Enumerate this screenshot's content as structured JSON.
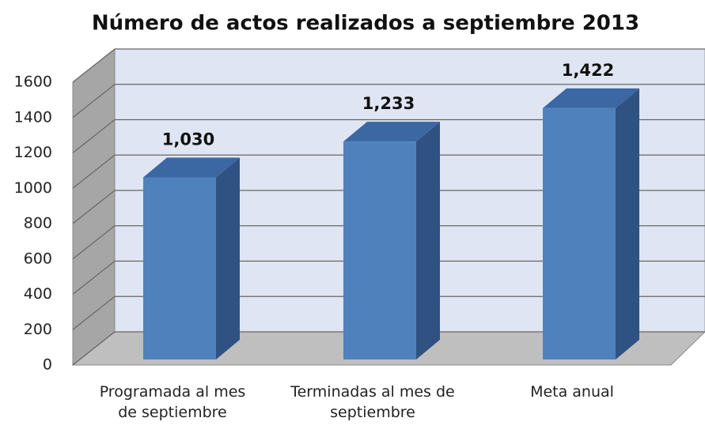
{
  "chart_data": {
    "type": "bar",
    "title": "Número de actos realizados a septiembre 2013",
    "categories": [
      "Programada al mes de septiembre",
      "Terminadas al mes de septiembre",
      "Meta anual"
    ],
    "values": [
      1030,
      1233,
      1422
    ],
    "value_labels": [
      "1,030",
      "1,233",
      "1,422"
    ],
    "color": "#4f81bd",
    "ylim": [
      0,
      1600
    ],
    "yticks": [
      0,
      200,
      400,
      600,
      800,
      1000,
      1200,
      1400,
      1600
    ],
    "grid": true
  }
}
